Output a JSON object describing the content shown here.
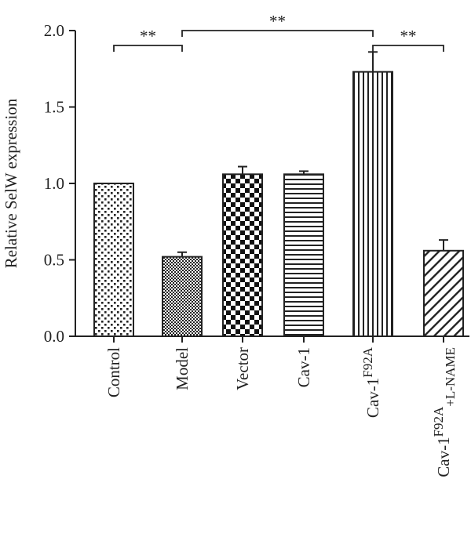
{
  "chart_data": {
    "type": "bar",
    "title": "",
    "xlabel": "",
    "ylabel": "Relative SelW expression",
    "ylim": [
      0,
      2.0
    ],
    "yticks": [
      "0.0",
      "0.5",
      "1.0",
      "1.5",
      "2.0"
    ],
    "yticks_values": [
      0,
      0.5,
      1.0,
      1.5,
      2.0
    ],
    "categories": [
      {
        "base": "Control",
        "sup": "",
        "sub": ""
      },
      {
        "base": "Model",
        "sup": "",
        "sub": ""
      },
      {
        "base": "Vector",
        "sup": "",
        "sub": ""
      },
      {
        "base": "Cav-1",
        "sup": "",
        "sub": ""
      },
      {
        "base": "Cav-1",
        "sup": "F92A",
        "sub": ""
      },
      {
        "base": "Cav-1",
        "sup": "F92A",
        "sub": "+L-NAME"
      }
    ],
    "values": [
      1.0,
      0.52,
      1.06,
      1.06,
      1.73,
      0.56
    ],
    "errors": [
      0.0,
      0.03,
      0.05,
      0.02,
      0.13,
      0.07
    ],
    "patterns": [
      "dots",
      "fine-check",
      "checkerboard",
      "horizontal-lines",
      "vertical-lines",
      "diagonal-lines"
    ],
    "significance": [
      {
        "from": 0,
        "to": 1,
        "label": "**"
      },
      {
        "from": 1,
        "to": 4,
        "label": "**"
      },
      {
        "from": 4,
        "to": 5,
        "label": "**"
      }
    ],
    "grid": false,
    "legend": "none",
    "colors": {
      "bar_stroke": "#222222",
      "pattern": "#222222",
      "background": "#ffffff"
    }
  }
}
